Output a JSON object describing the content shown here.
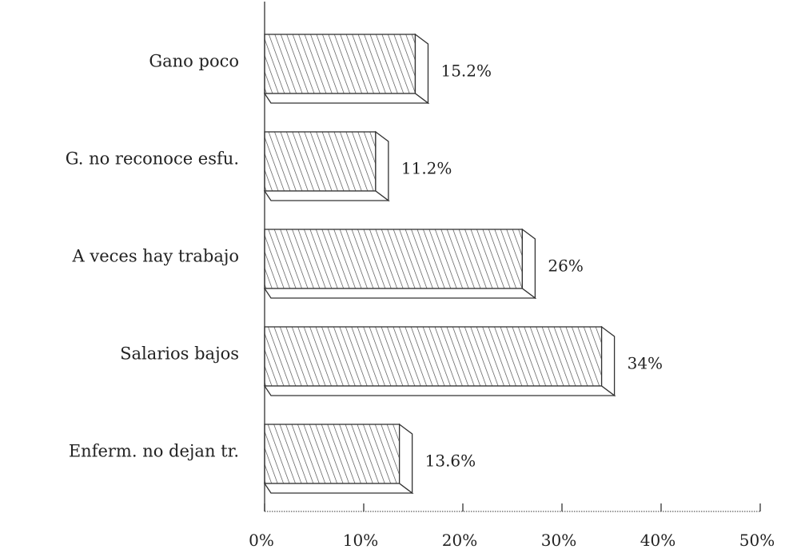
{
  "chart_data": {
    "type": "bar",
    "orientation": "horizontal",
    "bar_style": "3d-hatched",
    "categories": [
      "Gano poco",
      "G. no reconoce esfu.",
      "A veces hay trabajo",
      "Salarios bajos",
      "Enferm. no dejan tr."
    ],
    "values": [
      15.2,
      11.2,
      26,
      34,
      13.6
    ],
    "data_labels": [
      "15.2%",
      "11.2%",
      "26%",
      "34%",
      "13.6%"
    ],
    "xlim": [
      0,
      50
    ],
    "xticks": [
      0,
      10,
      20,
      30,
      40,
      50
    ],
    "xtick_labels": [
      "0%",
      "10%",
      "20%",
      "30%",
      "40%",
      "50%"
    ],
    "title": "",
    "xlabel": "",
    "ylabel": "",
    "grid": false,
    "legend": "none",
    "colors": {
      "bar_stroke": "#333333",
      "hatch": "#444444",
      "axis": "#333333",
      "text": "#222222",
      "background": "#ffffff"
    }
  }
}
